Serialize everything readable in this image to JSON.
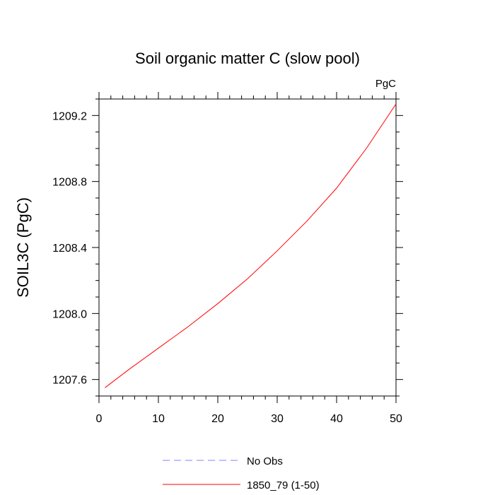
{
  "chart_data": {
    "type": "line",
    "title": "Soil organic matter C (slow pool)",
    "units_label": "PgC",
    "ylabel": "SOIL3C  (PgC)",
    "xlabel": "",
    "xlim": [
      0,
      50
    ],
    "ylim": [
      207.5,
      1209.3
    ],
    "x_ticks": [
      0,
      10,
      20,
      30,
      40,
      50
    ],
    "x_tick_labels": [
      "0",
      "10",
      "20",
      "30",
      "40",
      "50"
    ],
    "y_ticks": [
      1207.6,
      1208.0,
      1208.4,
      1208.8,
      1209.2
    ],
    "y_tick_labels": [
      "1207.6",
      "1208.0",
      "1208.4",
      "1208.8",
      "1209.2"
    ],
    "grid": false,
    "legend_position": "bottom",
    "series": [
      {
        "name": "No Obs",
        "color": "#8080ff",
        "dash": "dashed",
        "x": [],
        "y": []
      },
      {
        "name": "1850_79 (1-50)",
        "color": "#ff0000",
        "dash": "solid",
        "x": [
          1,
          5,
          10,
          15,
          20,
          25,
          30,
          35,
          40,
          45,
          50
        ],
        "y": [
          1207.55,
          1207.66,
          1207.79,
          1207.92,
          1208.06,
          1208.21,
          1208.38,
          1208.56,
          1208.76,
          1209.0,
          1209.27
        ]
      }
    ]
  }
}
